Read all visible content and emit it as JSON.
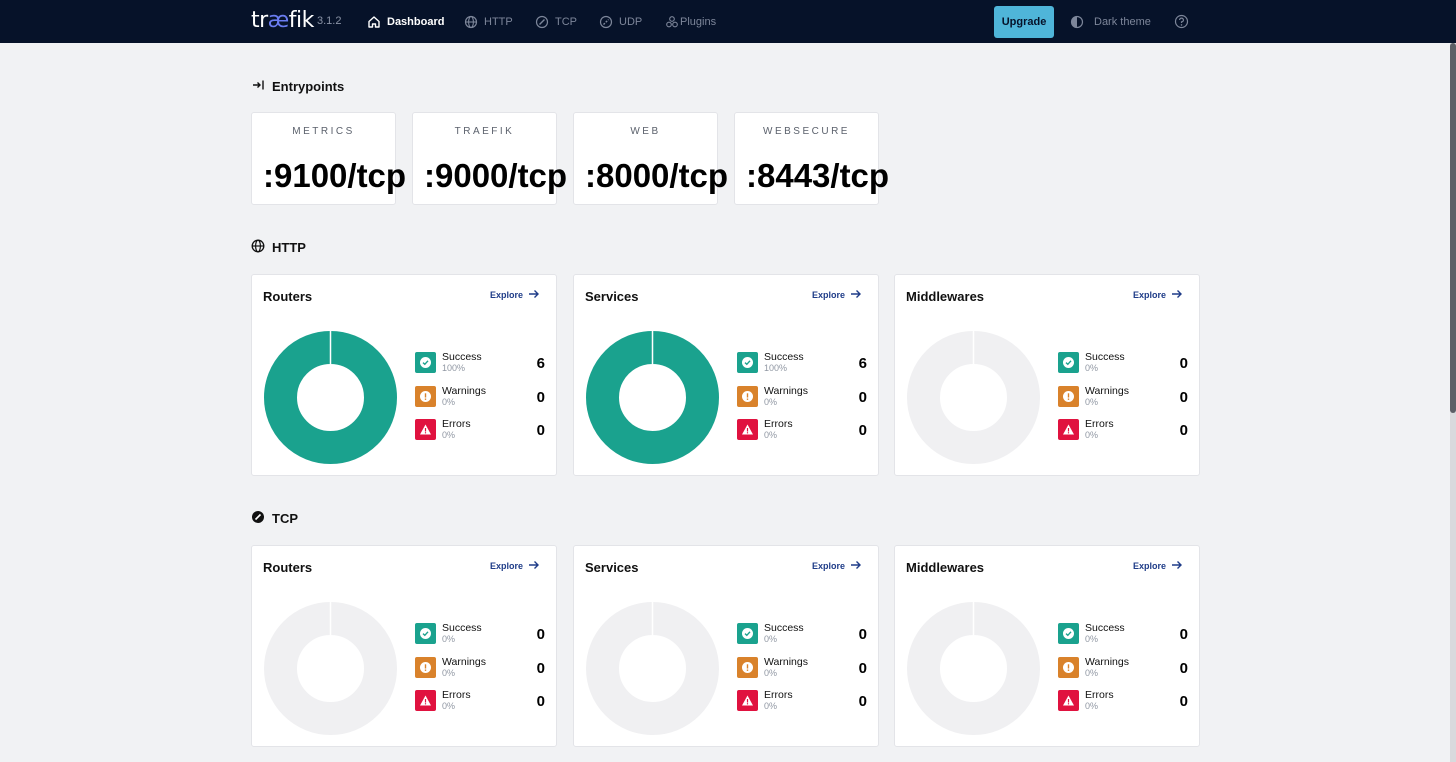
{
  "nav": {
    "logo_pre": "tr",
    "logo_ae": "æ",
    "logo_post": "fik",
    "version": "3.1.2",
    "items": [
      {
        "label": "Dashboard",
        "icon": "home-icon",
        "active": true
      },
      {
        "label": "HTTP",
        "icon": "globe-icon"
      },
      {
        "label": "TCP",
        "icon": "tcp-icon"
      },
      {
        "label": "UDP",
        "icon": "udp-icon"
      },
      {
        "label": "Plugins",
        "icon": "plugins-icon"
      }
    ],
    "upgrade_label": "Upgrade",
    "theme_label": "Dark theme",
    "theme_icon": "contrast-icon",
    "help_icon": "help-icon"
  },
  "colors": {
    "nav_bg": "#061229",
    "accent": "#4fb5d9",
    "success": "#1aa28e",
    "warning": "#d9822b",
    "error": "#e0123f",
    "empty_ring": "#f0f0f2",
    "link": "#1f3c88"
  },
  "entrypoints": {
    "title": "Entrypoints",
    "icon": "entrypoints-icon",
    "items": [
      {
        "name": "METRICS",
        "value": ":9100/tcp"
      },
      {
        "name": "TRAEFIK",
        "value": ":9000/tcp"
      },
      {
        "name": "WEB",
        "value": ":8000/tcp"
      },
      {
        "name": "WEBSECURE",
        "value": ":8443/tcp"
      }
    ]
  },
  "http": {
    "title": "HTTP",
    "icon": "globe-icon",
    "cards": [
      {
        "title": "Routers",
        "explore": "Explore",
        "stats": [
          {
            "label": "Success",
            "pct": "100%",
            "count": "6"
          },
          {
            "label": "Warnings",
            "pct": "0%",
            "count": "0"
          },
          {
            "label": "Errors",
            "pct": "0%",
            "count": "0"
          }
        ]
      },
      {
        "title": "Services",
        "explore": "Explore",
        "stats": [
          {
            "label": "Success",
            "pct": "100%",
            "count": "6"
          },
          {
            "label": "Warnings",
            "pct": "0%",
            "count": "0"
          },
          {
            "label": "Errors",
            "pct": "0%",
            "count": "0"
          }
        ]
      },
      {
        "title": "Middlewares",
        "explore": "Explore",
        "stats": [
          {
            "label": "Success",
            "pct": "0%",
            "count": "0"
          },
          {
            "label": "Warnings",
            "pct": "0%",
            "count": "0"
          },
          {
            "label": "Errors",
            "pct": "0%",
            "count": "0"
          }
        ]
      }
    ]
  },
  "tcp": {
    "title": "TCP",
    "icon": "tcp-icon",
    "cards": [
      {
        "title": "Routers",
        "explore": "Explore",
        "stats": [
          {
            "label": "Success",
            "pct": "0%",
            "count": "0"
          },
          {
            "label": "Warnings",
            "pct": "0%",
            "count": "0"
          },
          {
            "label": "Errors",
            "pct": "0%",
            "count": "0"
          }
        ]
      },
      {
        "title": "Services",
        "explore": "Explore",
        "stats": [
          {
            "label": "Success",
            "pct": "0%",
            "count": "0"
          },
          {
            "label": "Warnings",
            "pct": "0%",
            "count": "0"
          },
          {
            "label": "Errors",
            "pct": "0%",
            "count": "0"
          }
        ]
      },
      {
        "title": "Middlewares",
        "explore": "Explore",
        "stats": [
          {
            "label": "Success",
            "pct": "0%",
            "count": "0"
          },
          {
            "label": "Warnings",
            "pct": "0%",
            "count": "0"
          },
          {
            "label": "Errors",
            "pct": "0%",
            "count": "0"
          }
        ]
      }
    ]
  }
}
